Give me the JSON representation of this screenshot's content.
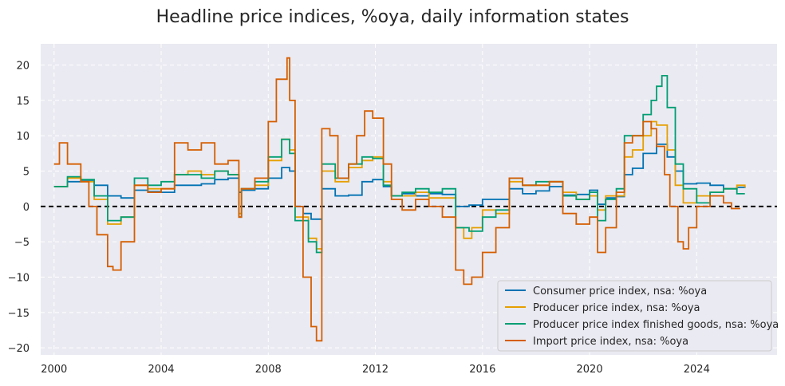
{
  "chart_data": {
    "type": "line",
    "title": "Headline price indices, %oya, daily information states",
    "xlabel": "",
    "ylabel": "",
    "xlim": [
      1999.5,
      2027.0
    ],
    "ylim": [
      -21,
      23
    ],
    "x_ticks": [
      2000,
      2004,
      2008,
      2012,
      2016,
      2020,
      2024
    ],
    "y_ticks": [
      -20,
      -15,
      -10,
      -5,
      0,
      5,
      10,
      15,
      20
    ],
    "grid": true,
    "zero_line": true,
    "legend_position": "lower-right",
    "series": [
      {
        "name": "Consumer price index, nsa: %oya",
        "color": "#0072b2",
        "x": [
          2000.0,
          2000.5,
          2001.0,
          2001.5,
          2002.0,
          2002.5,
          2003.0,
          2003.5,
          2004.0,
          2004.5,
          2005.0,
          2005.5,
          2006.0,
          2006.5,
          2006.9,
          2007.0,
          2007.5,
          2008.0,
          2008.5,
          2008.8,
          2009.0,
          2009.3,
          2009.6,
          2010.0,
          2010.5,
          2011.0,
          2011.5,
          2011.9,
          2012.3,
          2012.6,
          2013.0,
          2013.5,
          2014.0,
          2014.5,
          2015.0,
          2015.5,
          2016.0,
          2016.5,
          2017.0,
          2017.5,
          2018.0,
          2018.5,
          2019.0,
          2019.5,
          2020.0,
          2020.3,
          2020.6,
          2021.0,
          2021.3,
          2021.6,
          2022.0,
          2022.5,
          2022.9,
          2023.2,
          2023.5,
          2024.0,
          2024.5,
          2025.0,
          2025.5,
          2025.8
        ],
        "values": [
          2.8,
          3.5,
          3.6,
          3.0,
          1.5,
          1.2,
          2.3,
          2.1,
          2.0,
          3.0,
          3.0,
          3.2,
          3.8,
          4.0,
          2.0,
          2.3,
          2.5,
          4.0,
          5.5,
          5.0,
          0.0,
          -1.0,
          -1.8,
          2.5,
          1.5,
          1.6,
          3.5,
          3.8,
          2.8,
          1.5,
          1.8,
          1.5,
          1.8,
          1.7,
          0.0,
          0.2,
          1.0,
          1.0,
          2.5,
          1.8,
          2.2,
          2.8,
          1.6,
          1.7,
          2.3,
          0.3,
          1.2,
          1.4,
          4.5,
          5.4,
          7.5,
          8.8,
          7.0,
          5.0,
          3.2,
          3.3,
          3.0,
          2.5,
          2.7,
          2.9
        ]
      },
      {
        "name": "Producer price index, nsa: %oya",
        "color": "#e69f00",
        "x": [
          2000.0,
          2000.5,
          2001.0,
          2001.5,
          2002.0,
          2002.5,
          2003.0,
          2003.5,
          2004.0,
          2004.5,
          2005.0,
          2005.5,
          2006.0,
          2006.5,
          2006.9,
          2007.0,
          2007.5,
          2008.0,
          2008.5,
          2008.8,
          2009.0,
          2009.5,
          2009.8,
          2010.0,
          2010.5,
          2011.0,
          2011.5,
          2011.9,
          2012.3,
          2012.6,
          2013.0,
          2013.5,
          2014.0,
          2014.5,
          2015.0,
          2015.3,
          2015.6,
          2016.0,
          2016.5,
          2017.0,
          2017.5,
          2018.0,
          2018.5,
          2019.0,
          2019.5,
          2020.0,
          2020.3,
          2020.6,
          2021.0,
          2021.3,
          2021.6,
          2022.0,
          2022.3,
          2022.5,
          2022.9,
          2023.2,
          2023.5,
          2024.0,
          2024.5,
          2025.0,
          2025.5,
          2025.8
        ],
        "values": [
          2.8,
          4.0,
          3.5,
          1.0,
          -2.5,
          -1.5,
          3.0,
          2.5,
          2.5,
          4.5,
          5.0,
          4.5,
          5.0,
          4.5,
          -1.0,
          2.5,
          3.0,
          6.5,
          9.5,
          8.0,
          -1.5,
          -4.5,
          -6.0,
          5.0,
          3.5,
          5.5,
          6.5,
          7.0,
          3.5,
          1.5,
          1.5,
          2.0,
          1.2,
          1.2,
          -3.0,
          -4.5,
          -3.0,
          -0.5,
          -1.0,
          3.5,
          3.0,
          3.0,
          3.5,
          2.0,
          1.0,
          1.5,
          -0.5,
          1.5,
          1.5,
          7.0,
          8.0,
          10.0,
          12.0,
          11.5,
          8.0,
          3.0,
          0.5,
          1.5,
          2.0,
          2.5,
          3.0,
          2.7
        ]
      },
      {
        "name": "Producer price index finished goods, nsa: %oya",
        "color": "#009e73",
        "x": [
          2000.0,
          2000.5,
          2001.0,
          2001.5,
          2002.0,
          2002.5,
          2003.0,
          2003.5,
          2004.0,
          2004.5,
          2005.0,
          2005.5,
          2006.0,
          2006.5,
          2006.9,
          2007.0,
          2007.5,
          2008.0,
          2008.5,
          2008.8,
          2009.0,
          2009.5,
          2009.8,
          2010.0,
          2010.5,
          2011.0,
          2011.5,
          2011.9,
          2012.3,
          2012.6,
          2013.0,
          2013.5,
          2014.0,
          2014.5,
          2015.0,
          2015.5,
          2016.0,
          2016.5,
          2017.0,
          2017.5,
          2018.0,
          2018.5,
          2019.0,
          2019.5,
          2020.0,
          2020.3,
          2020.6,
          2021.0,
          2021.3,
          2021.6,
          2022.0,
          2022.3,
          2022.5,
          2022.7,
          2022.9,
          2023.2,
          2023.5,
          2024.0,
          2024.5,
          2025.0,
          2025.5,
          2025.8
        ],
        "values": [
          2.8,
          4.2,
          3.8,
          1.5,
          -2.0,
          -1.5,
          4.0,
          3.0,
          3.5,
          4.5,
          4.5,
          4.0,
          5.0,
          4.5,
          -1.5,
          2.5,
          3.5,
          7.0,
          9.5,
          7.5,
          -2.0,
          -5.0,
          -6.5,
          6.0,
          4.0,
          6.0,
          7.0,
          6.8,
          3.0,
          1.5,
          2.0,
          2.5,
          2.0,
          2.5,
          -3.0,
          -3.5,
          -1.5,
          -0.5,
          4.0,
          3.0,
          3.5,
          3.5,
          1.5,
          1.0,
          2.0,
          -2.0,
          1.0,
          2.5,
          10.0,
          10.0,
          13.0,
          15.0,
          17.0,
          18.5,
          14.0,
          6.0,
          2.5,
          0.5,
          2.0,
          2.5,
          1.8,
          1.8
        ]
      },
      {
        "name": "Import price index, nsa: %oya",
        "color": "#d55e00",
        "x": [
          2000.0,
          2000.2,
          2000.5,
          2001.0,
          2001.3,
          2001.6,
          2002.0,
          2002.2,
          2002.5,
          2003.0,
          2003.5,
          2004.0,
          2004.5,
          2005.0,
          2005.5,
          2006.0,
          2006.5,
          2006.9,
          2007.0,
          2007.5,
          2008.0,
          2008.3,
          2008.7,
          2008.8,
          2009.0,
          2009.3,
          2009.6,
          2009.8,
          2010.0,
          2010.3,
          2010.6,
          2011.0,
          2011.3,
          2011.6,
          2011.9,
          2012.3,
          2012.6,
          2013.0,
          2013.5,
          2014.0,
          2014.5,
          2015.0,
          2015.3,
          2015.6,
          2016.0,
          2016.5,
          2017.0,
          2017.5,
          2018.0,
          2018.5,
          2019.0,
          2019.5,
          2020.0,
          2020.3,
          2020.6,
          2021.0,
          2021.3,
          2021.6,
          2022.0,
          2022.3,
          2022.5,
          2022.8,
          2023.0,
          2023.3,
          2023.5,
          2023.7,
          2024.0,
          2024.5,
          2025.0,
          2025.3,
          2025.6
        ],
        "values": [
          6.0,
          9.0,
          6.0,
          3.5,
          0.0,
          -4.0,
          -8.5,
          -9.0,
          -5.0,
          3.0,
          2.0,
          2.5,
          9.0,
          8.0,
          9.0,
          6.0,
          6.5,
          -1.5,
          2.5,
          4.0,
          12.0,
          18.0,
          21.0,
          15.0,
          0.0,
          -10.0,
          -17.0,
          -19.0,
          11.0,
          10.0,
          4.0,
          6.0,
          10.0,
          13.5,
          12.5,
          6.0,
          1.0,
          -0.5,
          1.0,
          0.0,
          -1.5,
          -9.0,
          -11.0,
          -10.0,
          -6.5,
          -3.0,
          4.0,
          3.0,
          3.0,
          3.5,
          -1.0,
          -2.5,
          -1.5,
          -6.5,
          -3.0,
          2.0,
          9.0,
          10.0,
          12.0,
          11.0,
          8.5,
          4.5,
          0.0,
          -5.0,
          -6.0,
          -3.0,
          0.0,
          1.5,
          0.5,
          -0.3,
          -0.2
        ]
      }
    ]
  }
}
